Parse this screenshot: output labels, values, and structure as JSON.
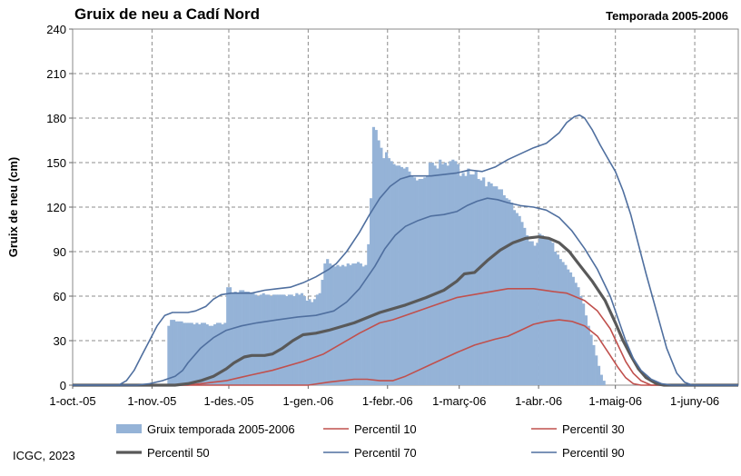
{
  "chart_data": {
    "type": "area",
    "title": "Gruix de neu a Cadí Nord",
    "subtitle": "Temporada 2005-2006",
    "ylabel": "Gruix de neu (cm)",
    "xlabel": "",
    "credit": "ICGC, 2023",
    "ylim": [
      0,
      240
    ],
    "yticks": [
      0,
      30,
      60,
      90,
      120,
      150,
      180,
      210,
      240
    ],
    "xlim_days": [
      0,
      260
    ],
    "xticks": [
      {
        "label": "1-oct.-05",
        "day": 0
      },
      {
        "label": "1-nov.-05",
        "day": 31
      },
      {
        "label": "1-des.-05",
        "day": 61
      },
      {
        "label": "1-gen.-06",
        "day": 92
      },
      {
        "label": "1-febr.-06",
        "day": 123
      },
      {
        "label": "1-març-06",
        "day": 151
      },
      {
        "label": "1-abr.-06",
        "day": 182
      },
      {
        "label": "1-maig-06",
        "day": 212
      },
      {
        "label": "1-juny-06",
        "day": 243
      }
    ],
    "grid": true,
    "legend_position": "bottom",
    "bars": {
      "name": "Gruix temporada 2005-2006",
      "color": "#95b3d7",
      "start_day": 37,
      "values": [
        40,
        44,
        44,
        43,
        43,
        43,
        42,
        42,
        42,
        42,
        41,
        42,
        41,
        42,
        42,
        41,
        40,
        40,
        41,
        42,
        42,
        41,
        42,
        66,
        66,
        62,
        63,
        62,
        64,
        64,
        63,
        63,
        62,
        62,
        61,
        60,
        61,
        62,
        61,
        61,
        60,
        61,
        61,
        61,
        61,
        61,
        60,
        61,
        61,
        60,
        62,
        61,
        62,
        60,
        57,
        58,
        56,
        58,
        61,
        62,
        71,
        82,
        85,
        82,
        81,
        80,
        81,
        80,
        81,
        80,
        82,
        81,
        82,
        82,
        83,
        82,
        80,
        81,
        95,
        126,
        174,
        172,
        165,
        160,
        153,
        157,
        153,
        151,
        149,
        148,
        148,
        147,
        146,
        147,
        144,
        141,
        140,
        138,
        139,
        139,
        140,
        141,
        150,
        150,
        148,
        146,
        152,
        149,
        150,
        148,
        151,
        152,
        151,
        149,
        141,
        143,
        141,
        146,
        142,
        142,
        144,
        139,
        138,
        140,
        134,
        137,
        136,
        134,
        134,
        132,
        132,
        128,
        126,
        125,
        123,
        118,
        116,
        114,
        110,
        106,
        101,
        97,
        97,
        94,
        96,
        102,
        101,
        100,
        99,
        98,
        96,
        90,
        88,
        85,
        83,
        81,
        78,
        76,
        73,
        69,
        66,
        60,
        55,
        47,
        40,
        34,
        27,
        20,
        13,
        7,
        3
      ]
    },
    "series": [
      {
        "name": "Percentil 10",
        "color": "#c0504d",
        "width": 1.6,
        "data": [
          [
            0,
            0
          ],
          [
            92,
            0
          ],
          [
            100,
            2
          ],
          [
            105,
            3
          ],
          [
            110,
            4
          ],
          [
            115,
            4
          ],
          [
            120,
            3
          ],
          [
            122,
            3
          ],
          [
            125,
            3
          ],
          [
            130,
            6
          ],
          [
            140,
            14
          ],
          [
            150,
            22
          ],
          [
            157,
            27
          ],
          [
            165,
            31
          ],
          [
            170,
            33
          ],
          [
            175,
            37
          ],
          [
            180,
            41
          ],
          [
            185,
            43
          ],
          [
            190,
            44
          ],
          [
            195,
            43
          ],
          [
            200,
            40
          ],
          [
            205,
            33
          ],
          [
            210,
            20
          ],
          [
            213,
            12
          ],
          [
            216,
            5
          ],
          [
            219,
            1
          ],
          [
            222,
            0
          ],
          [
            260,
            0
          ]
        ]
      },
      {
        "name": "Percentil 30",
        "color": "#c0504d",
        "width": 1.6,
        "data": [
          [
            0,
            0
          ],
          [
            36,
            0
          ],
          [
            45,
            0
          ],
          [
            50,
            1
          ],
          [
            55,
            2
          ],
          [
            60,
            3
          ],
          [
            65,
            5
          ],
          [
            70,
            7
          ],
          [
            78,
            10
          ],
          [
            90,
            16
          ],
          [
            98,
            21
          ],
          [
            105,
            28
          ],
          [
            112,
            35
          ],
          [
            120,
            42
          ],
          [
            125,
            44
          ],
          [
            130,
            47
          ],
          [
            140,
            53
          ],
          [
            150,
            59
          ],
          [
            160,
            62
          ],
          [
            170,
            65
          ],
          [
            180,
            65
          ],
          [
            188,
            63
          ],
          [
            193,
            62
          ],
          [
            200,
            57
          ],
          [
            205,
            50
          ],
          [
            210,
            38
          ],
          [
            213,
            27
          ],
          [
            216,
            16
          ],
          [
            219,
            8
          ],
          [
            222,
            3
          ],
          [
            226,
            0
          ],
          [
            260,
            0
          ]
        ]
      },
      {
        "name": "Percentil 50",
        "color": "#595959",
        "width": 3.2,
        "data": [
          [
            0,
            0
          ],
          [
            25,
            0
          ],
          [
            40,
            0
          ],
          [
            45,
            1
          ],
          [
            50,
            3
          ],
          [
            55,
            6
          ],
          [
            60,
            11
          ],
          [
            63,
            15
          ],
          [
            67,
            19
          ],
          [
            70,
            20
          ],
          [
            75,
            20
          ],
          [
            78,
            21
          ],
          [
            82,
            25
          ],
          [
            86,
            30
          ],
          [
            90,
            34
          ],
          [
            95,
            35
          ],
          [
            100,
            37
          ],
          [
            110,
            42
          ],
          [
            120,
            49
          ],
          [
            130,
            54
          ],
          [
            138,
            59
          ],
          [
            145,
            64
          ],
          [
            150,
            70
          ],
          [
            153,
            75
          ],
          [
            157,
            76
          ],
          [
            162,
            84
          ],
          [
            167,
            91
          ],
          [
            172,
            96
          ],
          [
            177,
            99
          ],
          [
            182,
            100
          ],
          [
            186,
            99
          ],
          [
            190,
            96
          ],
          [
            194,
            90
          ],
          [
            198,
            81
          ],
          [
            203,
            70
          ],
          [
            208,
            57
          ],
          [
            212,
            42
          ],
          [
            215,
            30
          ],
          [
            218,
            20
          ],
          [
            221,
            11
          ],
          [
            224,
            5
          ],
          [
            228,
            1
          ],
          [
            231,
            0
          ],
          [
            260,
            0
          ]
        ]
      },
      {
        "name": "Percentil 70",
        "color": "#4f6f9f",
        "width": 1.6,
        "data": [
          [
            0,
            0
          ],
          [
            25,
            0
          ],
          [
            30,
            1
          ],
          [
            35,
            3
          ],
          [
            40,
            6
          ],
          [
            43,
            10
          ],
          [
            45,
            15
          ],
          [
            50,
            25
          ],
          [
            55,
            32
          ],
          [
            60,
            37
          ],
          [
            66,
            40
          ],
          [
            72,
            42
          ],
          [
            80,
            44
          ],
          [
            88,
            46
          ],
          [
            95,
            47
          ],
          [
            102,
            50
          ],
          [
            107,
            56
          ],
          [
            112,
            65
          ],
          [
            118,
            80
          ],
          [
            122,
            92
          ],
          [
            126,
            101
          ],
          [
            130,
            107
          ],
          [
            135,
            111
          ],
          [
            140,
            114
          ],
          [
            145,
            115
          ],
          [
            150,
            117
          ],
          [
            154,
            121
          ],
          [
            158,
            124
          ],
          [
            162,
            126
          ],
          [
            166,
            125
          ],
          [
            170,
            123
          ],
          [
            175,
            121
          ],
          [
            180,
            120
          ],
          [
            185,
            118
          ],
          [
            190,
            113
          ],
          [
            195,
            104
          ],
          [
            200,
            92
          ],
          [
            205,
            78
          ],
          [
            210,
            60
          ],
          [
            213,
            45
          ],
          [
            216,
            30
          ],
          [
            219,
            18
          ],
          [
            222,
            10
          ],
          [
            226,
            4
          ],
          [
            230,
            1
          ],
          [
            234,
            0
          ],
          [
            260,
            0
          ]
        ]
      },
      {
        "name": "Percentil 90",
        "color": "#4f6f9f",
        "width": 1.6,
        "data": [
          [
            0,
            0
          ],
          [
            18,
            0
          ],
          [
            21,
            3
          ],
          [
            24,
            10
          ],
          [
            27,
            20
          ],
          [
            30,
            30
          ],
          [
            33,
            40
          ],
          [
            36,
            47
          ],
          [
            39,
            49
          ],
          [
            45,
            49
          ],
          [
            48,
            50
          ],
          [
            52,
            53
          ],
          [
            55,
            58
          ],
          [
            58,
            61
          ],
          [
            62,
            62
          ],
          [
            70,
            62
          ],
          [
            75,
            64
          ],
          [
            80,
            65
          ],
          [
            85,
            66
          ],
          [
            90,
            69
          ],
          [
            95,
            73
          ],
          [
            100,
            78
          ],
          [
            103,
            82
          ],
          [
            107,
            90
          ],
          [
            112,
            103
          ],
          [
            116,
            115
          ],
          [
            120,
            126
          ],
          [
            124,
            134
          ],
          [
            128,
            139
          ],
          [
            132,
            141
          ],
          [
            140,
            141
          ],
          [
            150,
            143
          ],
          [
            155,
            145
          ],
          [
            160,
            144
          ],
          [
            165,
            147
          ],
          [
            170,
            152
          ],
          [
            175,
            156
          ],
          [
            180,
            160
          ],
          [
            185,
            163
          ],
          [
            190,
            170
          ],
          [
            193,
            177
          ],
          [
            196,
            181
          ],
          [
            198,
            182
          ],
          [
            200,
            180
          ],
          [
            203,
            172
          ],
          [
            206,
            162
          ],
          [
            209,
            153
          ],
          [
            212,
            144
          ],
          [
            215,
            131
          ],
          [
            218,
            115
          ],
          [
            221,
            95
          ],
          [
            224,
            75
          ],
          [
            228,
            50
          ],
          [
            232,
            25
          ],
          [
            236,
            8
          ],
          [
            239,
            2
          ],
          [
            242,
            0
          ],
          [
            260,
            0
          ]
        ]
      }
    ]
  }
}
